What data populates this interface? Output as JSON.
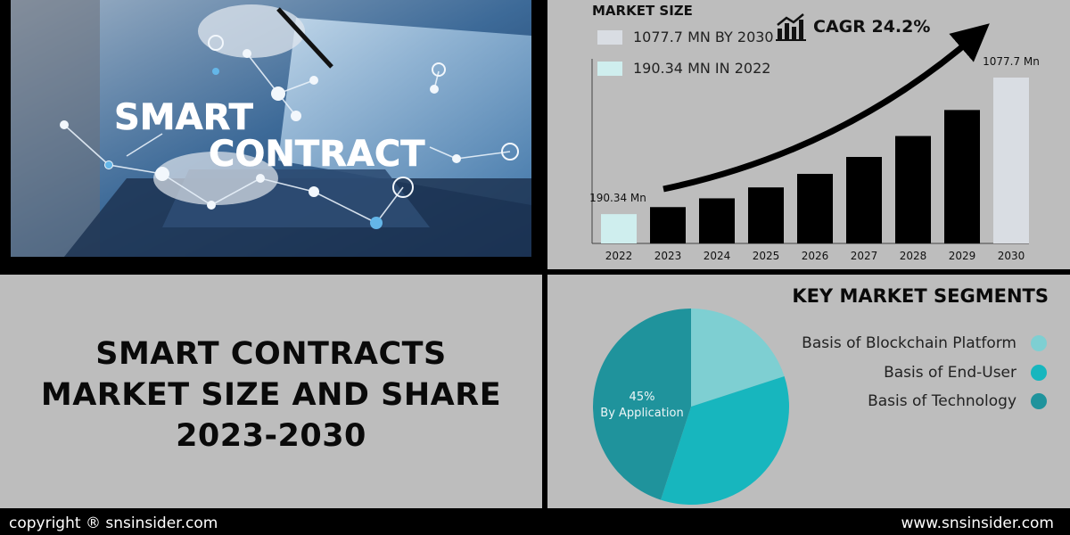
{
  "photo": {
    "line1": "SMART",
    "line2": "CONTRACT"
  },
  "market_size": {
    "title": "MARKET SIZE",
    "value_2030": "1077.7 MN BY 2030",
    "value_2022": "190.34 MN IN 2022",
    "cagr": "CAGR 24.2%",
    "icon": "bar-growth-icon"
  },
  "title": {
    "line1": "SMART CONTRACTS",
    "line2": "MARKET SIZE AND SHARE",
    "line3": "2023-2030"
  },
  "segments": {
    "title": "KEY MARKET SEGMENTS",
    "items": [
      {
        "label": "Basis of Blockchain Platform",
        "color": "#7ecfd2"
      },
      {
        "label": "Basis of End-User",
        "color": "#17b6be"
      },
      {
        "label": "Basis of Technology",
        "color": "#1f939c"
      }
    ]
  },
  "footer": {
    "copyright": "copyright ® snsinsider.com",
    "website": "www.snsinsider.com"
  },
  "chart_data": [
    {
      "type": "bar",
      "categories": [
        "2022",
        "2023",
        "2024",
        "2025",
        "2026",
        "2027",
        "2028",
        "2029",
        "2030"
      ],
      "values": [
        190.34,
        236,
        293,
        364,
        452,
        562,
        698,
        867,
        1077.7
      ],
      "data_labels": {
        "first": "190.34 Mn",
        "last": "1077.7 Mn"
      },
      "colors": {
        "first": "#cfeeee",
        "middle": "#000000",
        "last": "#d9dde3"
      },
      "ylim": [
        0,
        1200
      ],
      "grid": false
    },
    {
      "type": "pie",
      "slices": [
        {
          "name": "Basis of Blockchain Platform",
          "value": 20,
          "color": "#7ecfd2"
        },
        {
          "name": "Basis of End-User",
          "value": 35,
          "color": "#17b6be"
        },
        {
          "name": "Basis of Technology",
          "value": 45,
          "color": "#1f939c",
          "label_value": "45%",
          "label_text": "By Application"
        }
      ]
    }
  ]
}
